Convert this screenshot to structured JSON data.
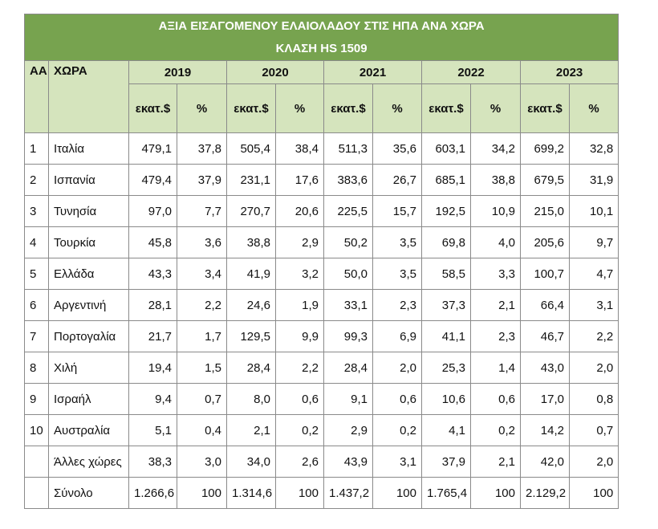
{
  "table": {
    "title": "ΑΞΙΑ ΕΙΣΑΓΟΜΕΝΟΥ ΕΛΑΙΟΛΑΔΟΥ ΣΤΙΣ ΗΠΑ ΑΝΑ ΧΩΡΑ",
    "subtitle": "ΚΛΑΣΗ HS 1509",
    "index_header": "ΑΑ",
    "country_header": "ΧΩΡΑ",
    "years": [
      "2019",
      "2020",
      "2021",
      "2022",
      "2023"
    ],
    "subheaders": [
      "εκατ.$",
      "%",
      "εκατ.$",
      "%",
      "εκατ.$",
      "%",
      "εκατ.$",
      "%",
      "εκατ.$",
      "%"
    ],
    "rows": [
      [
        "1",
        "Ιταλία",
        "479,1",
        "37,8",
        "505,4",
        "38,4",
        "511,3",
        "35,6",
        "603,1",
        "34,2",
        "699,2",
        "32,8"
      ],
      [
        "2",
        "Ισπανία",
        "479,4",
        "37,9",
        "231,1",
        "17,6",
        "383,6",
        "26,7",
        "685,1",
        "38,8",
        "679,5",
        "31,9"
      ],
      [
        "3",
        "Τυνησία",
        "97,0",
        "7,7",
        "270,7",
        "20,6",
        "225,5",
        "15,7",
        "192,5",
        "10,9",
        "215,0",
        "10,1"
      ],
      [
        "4",
        "Τουρκία",
        "45,8",
        "3,6",
        "38,8",
        "2,9",
        "50,2",
        "3,5",
        "69,8",
        "4,0",
        "205,6",
        "9,7"
      ],
      [
        "5",
        "Ελλάδα",
        "43,3",
        "3,4",
        "41,9",
        "3,2",
        "50,0",
        "3,5",
        "58,5",
        "3,3",
        "100,7",
        "4,7"
      ],
      [
        "6",
        "Αργεντινή",
        "28,1",
        "2,2",
        "24,6",
        "1,9",
        "33,1",
        "2,3",
        "37,3",
        "2,1",
        "66,4",
        "3,1"
      ],
      [
        "7",
        "Πορτογαλία",
        "21,7",
        "1,7",
        "129,5",
        "9,9",
        "99,3",
        "6,9",
        "41,1",
        "2,3",
        "46,7",
        "2,2"
      ],
      [
        "8",
        "Χιλή",
        "19,4",
        "1,5",
        "28,4",
        "2,2",
        "28,4",
        "2,0",
        "25,3",
        "1,4",
        "43,0",
        "2,0"
      ],
      [
        "9",
        "Ισραήλ",
        "9,4",
        "0,7",
        "8,0",
        "0,6",
        "9,1",
        "0,6",
        "10,6",
        "0,6",
        "17,0",
        "0,8"
      ],
      [
        "10",
        "Αυστραλία",
        "5,1",
        "0,4",
        "2,1",
        "0,2",
        "2,9",
        "0,2",
        "4,1",
        "0,2",
        "14,2",
        "0,7"
      ],
      [
        null,
        "Άλλες χώρες",
        "38,3",
        "3,0",
        "34,0",
        "2,6",
        "43,9",
        "3,1",
        "37,9",
        "2,1",
        "42,0",
        "2,0"
      ],
      [
        null,
        "Σύνολο",
        "1.266,6",
        "100",
        "1.314,6",
        "100",
        "1.437,2",
        "100",
        "1.765,4",
        "100",
        "2.129,2",
        "100"
      ]
    ]
  }
}
